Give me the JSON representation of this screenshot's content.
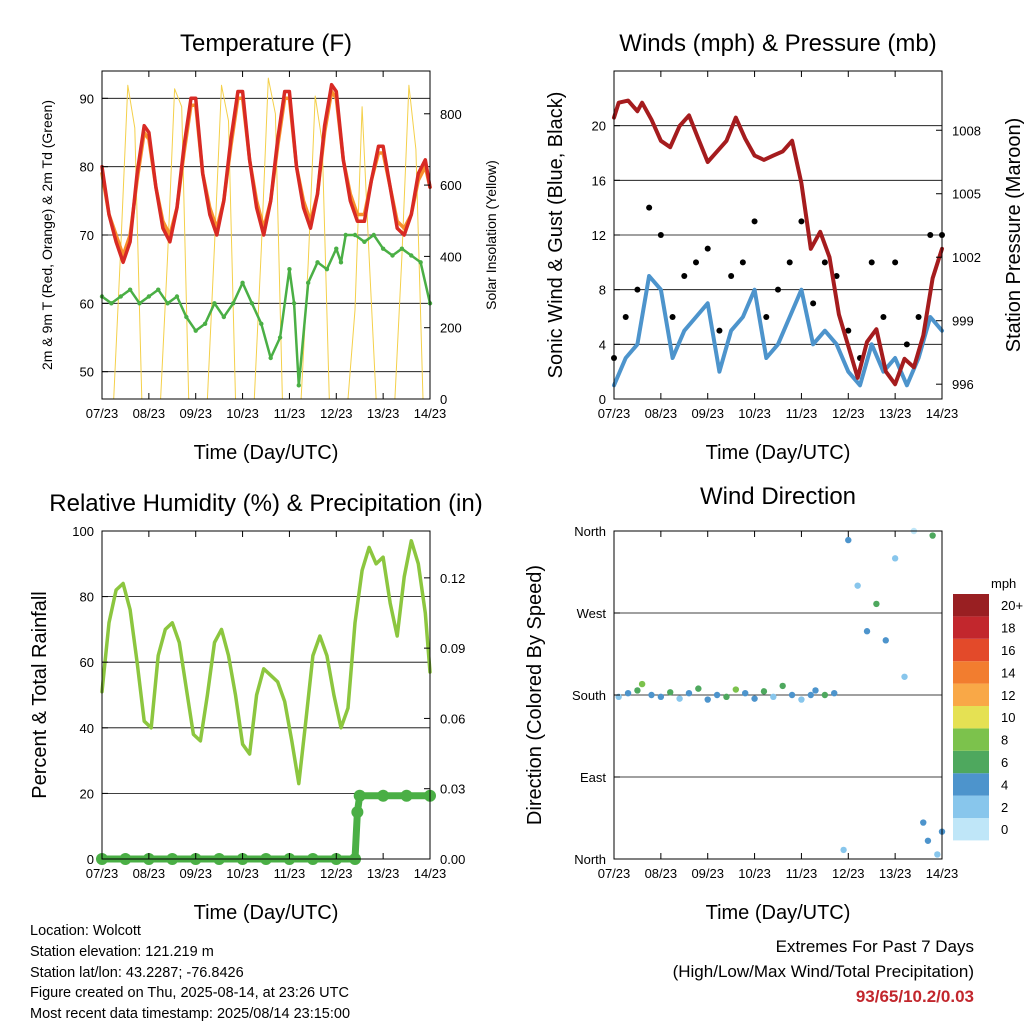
{
  "x_ticks": [
    "07/23",
    "08/23",
    "09/23",
    "10/23",
    "11/23",
    "12/23",
    "13/23",
    "14/23"
  ],
  "x_label": "Time (Day/UTC)",
  "panels": {
    "temperature": {
      "title": "Temperature (F)",
      "ylabel_left": "2m & 9m T (Red, Orange) & 2m Td (Green)",
      "ylabel_right": "Solar Insolation (Yellow)",
      "yticks_left": [
        "50",
        "60",
        "70",
        "80",
        "90"
      ],
      "yticks_right": [
        "0",
        "200",
        "400",
        "600",
        "800"
      ]
    },
    "winds": {
      "title": "Winds (mph) & Pressure (mb)",
      "ylabel_left": "Sonic Wind & Gust (Blue, Black)",
      "ylabel_right": "Station Pressure (Maroon)",
      "yticks_left": [
        "0",
        "4",
        "8",
        "12",
        "16",
        "20"
      ],
      "yticks_right": [
        "996",
        "999",
        "1002",
        "1005",
        "1008"
      ]
    },
    "humidity": {
      "title": "Relative Humidity (%) & Precipitation (in)",
      "ylabel_left": "Percent & Total Rainfall",
      "yticks_left": [
        "0",
        "20",
        "40",
        "60",
        "80",
        "100"
      ],
      "yticks_right": [
        "0.00",
        "0.03",
        "0.06",
        "0.09",
        "0.12"
      ]
    },
    "direction": {
      "title": "Wind Direction",
      "ylabel_left": "Direction (Colored By Speed)",
      "yticks_left": [
        "North",
        "East",
        "South",
        "West",
        "North"
      ],
      "colorbar_title": "mph",
      "colorbar_labels": [
        "0",
        "2",
        "4",
        "6",
        "8",
        "10",
        "12",
        "14",
        "16",
        "18",
        "20+"
      ],
      "colorbar_colors": [
        "#bfe6f8",
        "#88c6ec",
        "#4d94cc",
        "#4ea85e",
        "#7cc24c",
        "#e5e153",
        "#f9a847",
        "#f27d2f",
        "#e34a2a",
        "#c2272d",
        "#991f22"
      ]
    }
  },
  "info": {
    "location": "Location: Wolcott",
    "elevation": "Station elevation: 121.219 m",
    "latlon": "Station lat/lon: 43.2287; -76.8426",
    "created": "Figure created on Thu, 2025-08-14, at 23:26 UTC",
    "recent": "Most recent data timestamp: 2025/08/14 23:15:00"
  },
  "extremes": {
    "line1": "Extremes For Past 7 Days",
    "line2": "(High/Low/Max Wind/Total Precipitation)",
    "values": "93/65/10.2/0.03"
  },
  "chart_data": [
    {
      "type": "line",
      "title": "Temperature (F)",
      "xlabel": "Time (Day/UTC)",
      "ylabel": "2m & 9m T (Red, Orange) & 2m Td (Green)",
      "ylabel_right": "Solar Insolation (Yellow)",
      "x_unit": "days from 07/23 00 UTC",
      "xlim": [
        0,
        7
      ],
      "ylim": [
        46,
        94
      ],
      "ylim_right": [
        0,
        920
      ],
      "grid": "horizontal",
      "series": [
        {
          "name": "2m T",
          "color": "#d82a24",
          "axis": "left",
          "x": [
            0,
            0.15,
            0.3,
            0.45,
            0.6,
            0.75,
            0.9,
            1.0,
            1.15,
            1.3,
            1.45,
            1.6,
            1.75,
            1.9,
            2.0,
            2.15,
            2.3,
            2.45,
            2.6,
            2.75,
            2.9,
            3.0,
            3.15,
            3.3,
            3.45,
            3.6,
            3.75,
            3.9,
            4.0,
            4.15,
            4.3,
            4.45,
            4.6,
            4.75,
            4.9,
            5.0,
            5.15,
            5.3,
            5.45,
            5.6,
            5.75,
            5.9,
            6.0,
            6.15,
            6.3,
            6.45,
            6.6,
            6.75,
            6.9,
            7.0
          ],
          "y": [
            80,
            73,
            69,
            66,
            69,
            79,
            86,
            85,
            77,
            71,
            69,
            74,
            83,
            90,
            90,
            79,
            73,
            70,
            75,
            84,
            91,
            91,
            81,
            74,
            70,
            75,
            84,
            91,
            91,
            80,
            74,
            71,
            76,
            86,
            92,
            91,
            81,
            75,
            72,
            72,
            78,
            83,
            83,
            77,
            71,
            70,
            73,
            79,
            81,
            77
          ]
        },
        {
          "name": "9m T",
          "color": "#f7902c",
          "axis": "left",
          "x": [
            0,
            0.15,
            0.3,
            0.45,
            0.6,
            0.75,
            0.9,
            1.0,
            1.15,
            1.3,
            1.45,
            1.6,
            1.75,
            1.9,
            2.0,
            2.15,
            2.3,
            2.45,
            2.6,
            2.75,
            2.9,
            3.0,
            3.15,
            3.3,
            3.45,
            3.6,
            3.75,
            3.9,
            4.0,
            4.15,
            4.3,
            4.45,
            4.6,
            4.75,
            4.9,
            5.0,
            5.15,
            5.3,
            5.45,
            5.6,
            5.75,
            5.9,
            6.0,
            6.15,
            6.3,
            6.45,
            6.6,
            6.75,
            6.9,
            7.0
          ],
          "y": [
            79,
            73,
            70,
            67,
            70,
            78,
            85,
            84,
            77,
            72,
            70,
            74,
            82,
            89,
            89,
            79,
            74,
            71,
            75,
            83,
            90,
            90,
            81,
            75,
            71,
            75,
            83,
            90,
            90,
            80,
            75,
            72,
            76,
            85,
            91,
            90,
            81,
            76,
            73,
            73,
            78,
            82,
            82,
            77,
            72,
            71,
            73,
            78,
            80,
            77
          ]
        },
        {
          "name": "2m Td",
          "color": "#4aaf45",
          "axis": "left",
          "x": [
            0,
            0.2,
            0.4,
            0.6,
            0.8,
            1.0,
            1.2,
            1.4,
            1.6,
            1.8,
            2.0,
            2.2,
            2.4,
            2.6,
            2.8,
            3.0,
            3.2,
            3.4,
            3.6,
            3.8,
            4.0,
            4.1,
            4.2,
            4.4,
            4.6,
            4.8,
            5.0,
            5.1,
            5.2,
            5.4,
            5.6,
            5.8,
            6.0,
            6.2,
            6.4,
            6.6,
            6.8,
            7.0
          ],
          "y": [
            61,
            60,
            61,
            62,
            60,
            61,
            62,
            60,
            61,
            58,
            56,
            57,
            60,
            58,
            60,
            63,
            60,
            57,
            52,
            55,
            65,
            60,
            48,
            63,
            66,
            65,
            68,
            66,
            70,
            70,
            69,
            70,
            68,
            67,
            68,
            67,
            66,
            60
          ]
        },
        {
          "name": "Solar Insolation",
          "color": "#f4d04a",
          "axis": "right",
          "x": [
            0.25,
            0.4,
            0.55,
            0.7,
            0.85,
            1.25,
            1.4,
            1.55,
            1.7,
            1.85,
            2.25,
            2.4,
            2.55,
            2.7,
            2.85,
            3.25,
            3.4,
            3.55,
            3.7,
            3.85,
            4.25,
            4.4,
            4.55,
            4.7,
            4.85,
            5.25,
            5.4,
            5.55,
            5.7,
            5.85,
            6.25,
            6.4,
            6.55,
            6.7,
            6.85
          ],
          "y": [
            0,
            420,
            880,
            760,
            0,
            0,
            400,
            870,
            820,
            0,
            0,
            430,
            880,
            780,
            0,
            0,
            420,
            900,
            800,
            0,
            0,
            380,
            850,
            720,
            0,
            0,
            250,
            820,
            400,
            0,
            0,
            400,
            880,
            700,
            0
          ]
        }
      ]
    },
    {
      "type": "line",
      "title": "Winds (mph) & Pressure (mb)",
      "xlabel": "Time (Day/UTC)",
      "ylabel": "Sonic Wind & Gust (Blue, Black)",
      "ylabel_right": "Station Pressure (Maroon)",
      "x_unit": "days from 07/23 00 UTC",
      "xlim": [
        0,
        7
      ],
      "ylim": [
        0,
        24
      ],
      "ylim_right": [
        995.3,
        1010.8
      ],
      "grid": "horizontal",
      "series": [
        {
          "name": "Sonic Wind",
          "color": "#4d94cc",
          "axis": "left",
          "x": [
            0,
            0.25,
            0.5,
            0.75,
            1.0,
            1.25,
            1.5,
            1.75,
            2.0,
            2.25,
            2.5,
            2.75,
            3.0,
            3.25,
            3.5,
            3.75,
            4.0,
            4.25,
            4.5,
            4.75,
            5.0,
            5.25,
            5.5,
            5.75,
            6.0,
            6.25,
            6.5,
            6.75,
            7.0
          ],
          "y": [
            1,
            3,
            4,
            9,
            8,
            3,
            5,
            6,
            7,
            2,
            5,
            6,
            8,
            3,
            4,
            6,
            8,
            4,
            5,
            4,
            2,
            1,
            4,
            2,
            3,
            1,
            3,
            6,
            5
          ]
        },
        {
          "name": "Gust",
          "color": "#000000",
          "axis": "left",
          "x": [
            0,
            0.25,
            0.5,
            0.75,
            1.0,
            1.25,
            1.5,
            1.75,
            2.0,
            2.25,
            2.5,
            2.75,
            3.0,
            3.25,
            3.5,
            3.75,
            4.0,
            4.25,
            4.5,
            4.75,
            5.0,
            5.25,
            5.5,
            5.75,
            6.0,
            6.25,
            6.5,
            6.75,
            7.0
          ],
          "y": [
            3,
            6,
            8,
            14,
            12,
            6,
            9,
            10,
            11,
            5,
            9,
            10,
            13,
            6,
            8,
            10,
            13,
            7,
            10,
            9,
            5,
            3,
            10,
            6,
            10,
            4,
            6,
            12,
            12
          ]
        },
        {
          "name": "Station Pressure",
          "color": "#a51c1e",
          "axis": "right",
          "x": [
            0,
            0.1,
            0.3,
            0.5,
            0.6,
            0.8,
            1.0,
            1.2,
            1.4,
            1.6,
            1.8,
            2.0,
            2.2,
            2.4,
            2.6,
            2.8,
            3.0,
            3.2,
            3.4,
            3.6,
            3.8,
            4.0,
            4.2,
            4.4,
            4.6,
            4.8,
            5.0,
            5.2,
            5.4,
            5.6,
            5.8,
            6.0,
            6.2,
            6.4,
            6.6,
            6.8,
            7.0
          ],
          "y": [
            1008.6,
            1009.3,
            1009.4,
            1008.9,
            1009.3,
            1008.5,
            1007.5,
            1007.2,
            1008.2,
            1008.7,
            1007.6,
            1006.5,
            1007.0,
            1007.5,
            1008.6,
            1007.6,
            1006.8,
            1006.6,
            1006.8,
            1007.0,
            1007.5,
            1005.5,
            1002.4,
            1003.2,
            1002.0,
            999.3,
            997.8,
            996.3,
            998.0,
            998.6,
            996.6,
            996.0,
            997.2,
            996.8,
            998.3,
            1001.0,
            1002.4
          ]
        }
      ]
    },
    {
      "type": "line",
      "title": "Relative Humidity (%) & Precipitation (in)",
      "xlabel": "Time (Day/UTC)",
      "ylabel": "Percent & Total Rainfall",
      "x_unit": "days from 07/23 00 UTC",
      "xlim": [
        0,
        7
      ],
      "ylim": [
        0,
        100
      ],
      "ylim_right": [
        0,
        0.14
      ],
      "grid": "horizontal",
      "series": [
        {
          "name": "Relative Humidity",
          "color": "#8cc63f",
          "axis": "left",
          "x": [
            0,
            0.15,
            0.3,
            0.45,
            0.6,
            0.75,
            0.9,
            1.05,
            1.2,
            1.35,
            1.5,
            1.65,
            1.8,
            1.95,
            2.1,
            2.25,
            2.4,
            2.55,
            2.7,
            2.85,
            3.0,
            3.15,
            3.3,
            3.45,
            3.6,
            3.75,
            3.9,
            4.05,
            4.2,
            4.35,
            4.5,
            4.65,
            4.8,
            4.95,
            5.1,
            5.25,
            5.4,
            5.55,
            5.7,
            5.85,
            6.0,
            6.15,
            6.3,
            6.45,
            6.6,
            6.75,
            6.9,
            7.0
          ],
          "y": [
            51,
            72,
            82,
            84,
            76,
            60,
            42,
            40,
            62,
            70,
            72,
            66,
            52,
            38,
            36,
            50,
            66,
            70,
            62,
            50,
            35,
            32,
            50,
            58,
            56,
            54,
            48,
            36,
            23,
            42,
            62,
            68,
            62,
            50,
            40,
            46,
            72,
            88,
            95,
            90,
            92,
            78,
            68,
            86,
            97,
            90,
            75,
            57
          ]
        },
        {
          "name": "Total Precipitation",
          "color": "#4aaf45",
          "axis": "right",
          "x": [
            0,
            0.5,
            1.0,
            1.5,
            2.0,
            2.5,
            3.0,
            3.5,
            4.0,
            4.5,
            5.0,
            5.4,
            5.45,
            5.5,
            6.0,
            6.5,
            7.0
          ],
          "y": [
            0,
            0,
            0,
            0,
            0,
            0,
            0,
            0,
            0,
            0,
            0,
            0,
            0.02,
            0.027,
            0.027,
            0.027,
            0.027
          ]
        }
      ]
    },
    {
      "type": "scatter",
      "title": "Wind Direction",
      "xlabel": "Time (Day/UTC)",
      "ylabel": "Direction (Colored By Speed)",
      "x_unit": "days from 07/23 00 UTC",
      "y_unit": "degrees (North=0/360, East=90, South=180, West=270); colored by speed (mph)",
      "xlim": [
        0,
        7
      ],
      "ylim": [
        0,
        360
      ],
      "grid": "horizontal",
      "colorbar": {
        "title": "mph",
        "levels": [
          0,
          2,
          4,
          6,
          8,
          10,
          12,
          14,
          16,
          18,
          20
        ]
      },
      "x": [
        0.1,
        0.3,
        0.5,
        0.6,
        0.8,
        1.0,
        1.2,
        1.4,
        1.6,
        1.8,
        2.0,
        2.2,
        2.4,
        2.6,
        2.8,
        3.0,
        3.2,
        3.4,
        3.6,
        3.8,
        4.0,
        4.2,
        4.3,
        4.5,
        4.7,
        4.9,
        5.0,
        5.2,
        5.4,
        5.6,
        5.8,
        6.0,
        6.2,
        6.4,
        6.6,
        6.7,
        6.8,
        6.9,
        7.0
      ],
      "y": [
        178,
        182,
        185,
        192,
        180,
        178,
        183,
        176,
        182,
        187,
        175,
        180,
        178,
        186,
        182,
        176,
        184,
        178,
        190,
        180,
        175,
        180,
        185,
        180,
        182,
        10,
        350,
        300,
        250,
        280,
        240,
        330,
        200,
        360,
        40,
        20,
        355,
        5,
        30
      ],
      "speed": [
        2,
        4,
        6,
        8,
        5,
        4,
        6,
        3,
        5,
        7,
        4,
        5,
        6,
        8,
        5,
        4,
        7,
        3,
        6,
        5,
        2,
        4,
        5,
        6,
        5,
        2,
        4,
        3,
        5,
        6,
        4,
        3,
        2,
        1,
        4,
        5,
        6,
        3,
        5
      ]
    }
  ]
}
